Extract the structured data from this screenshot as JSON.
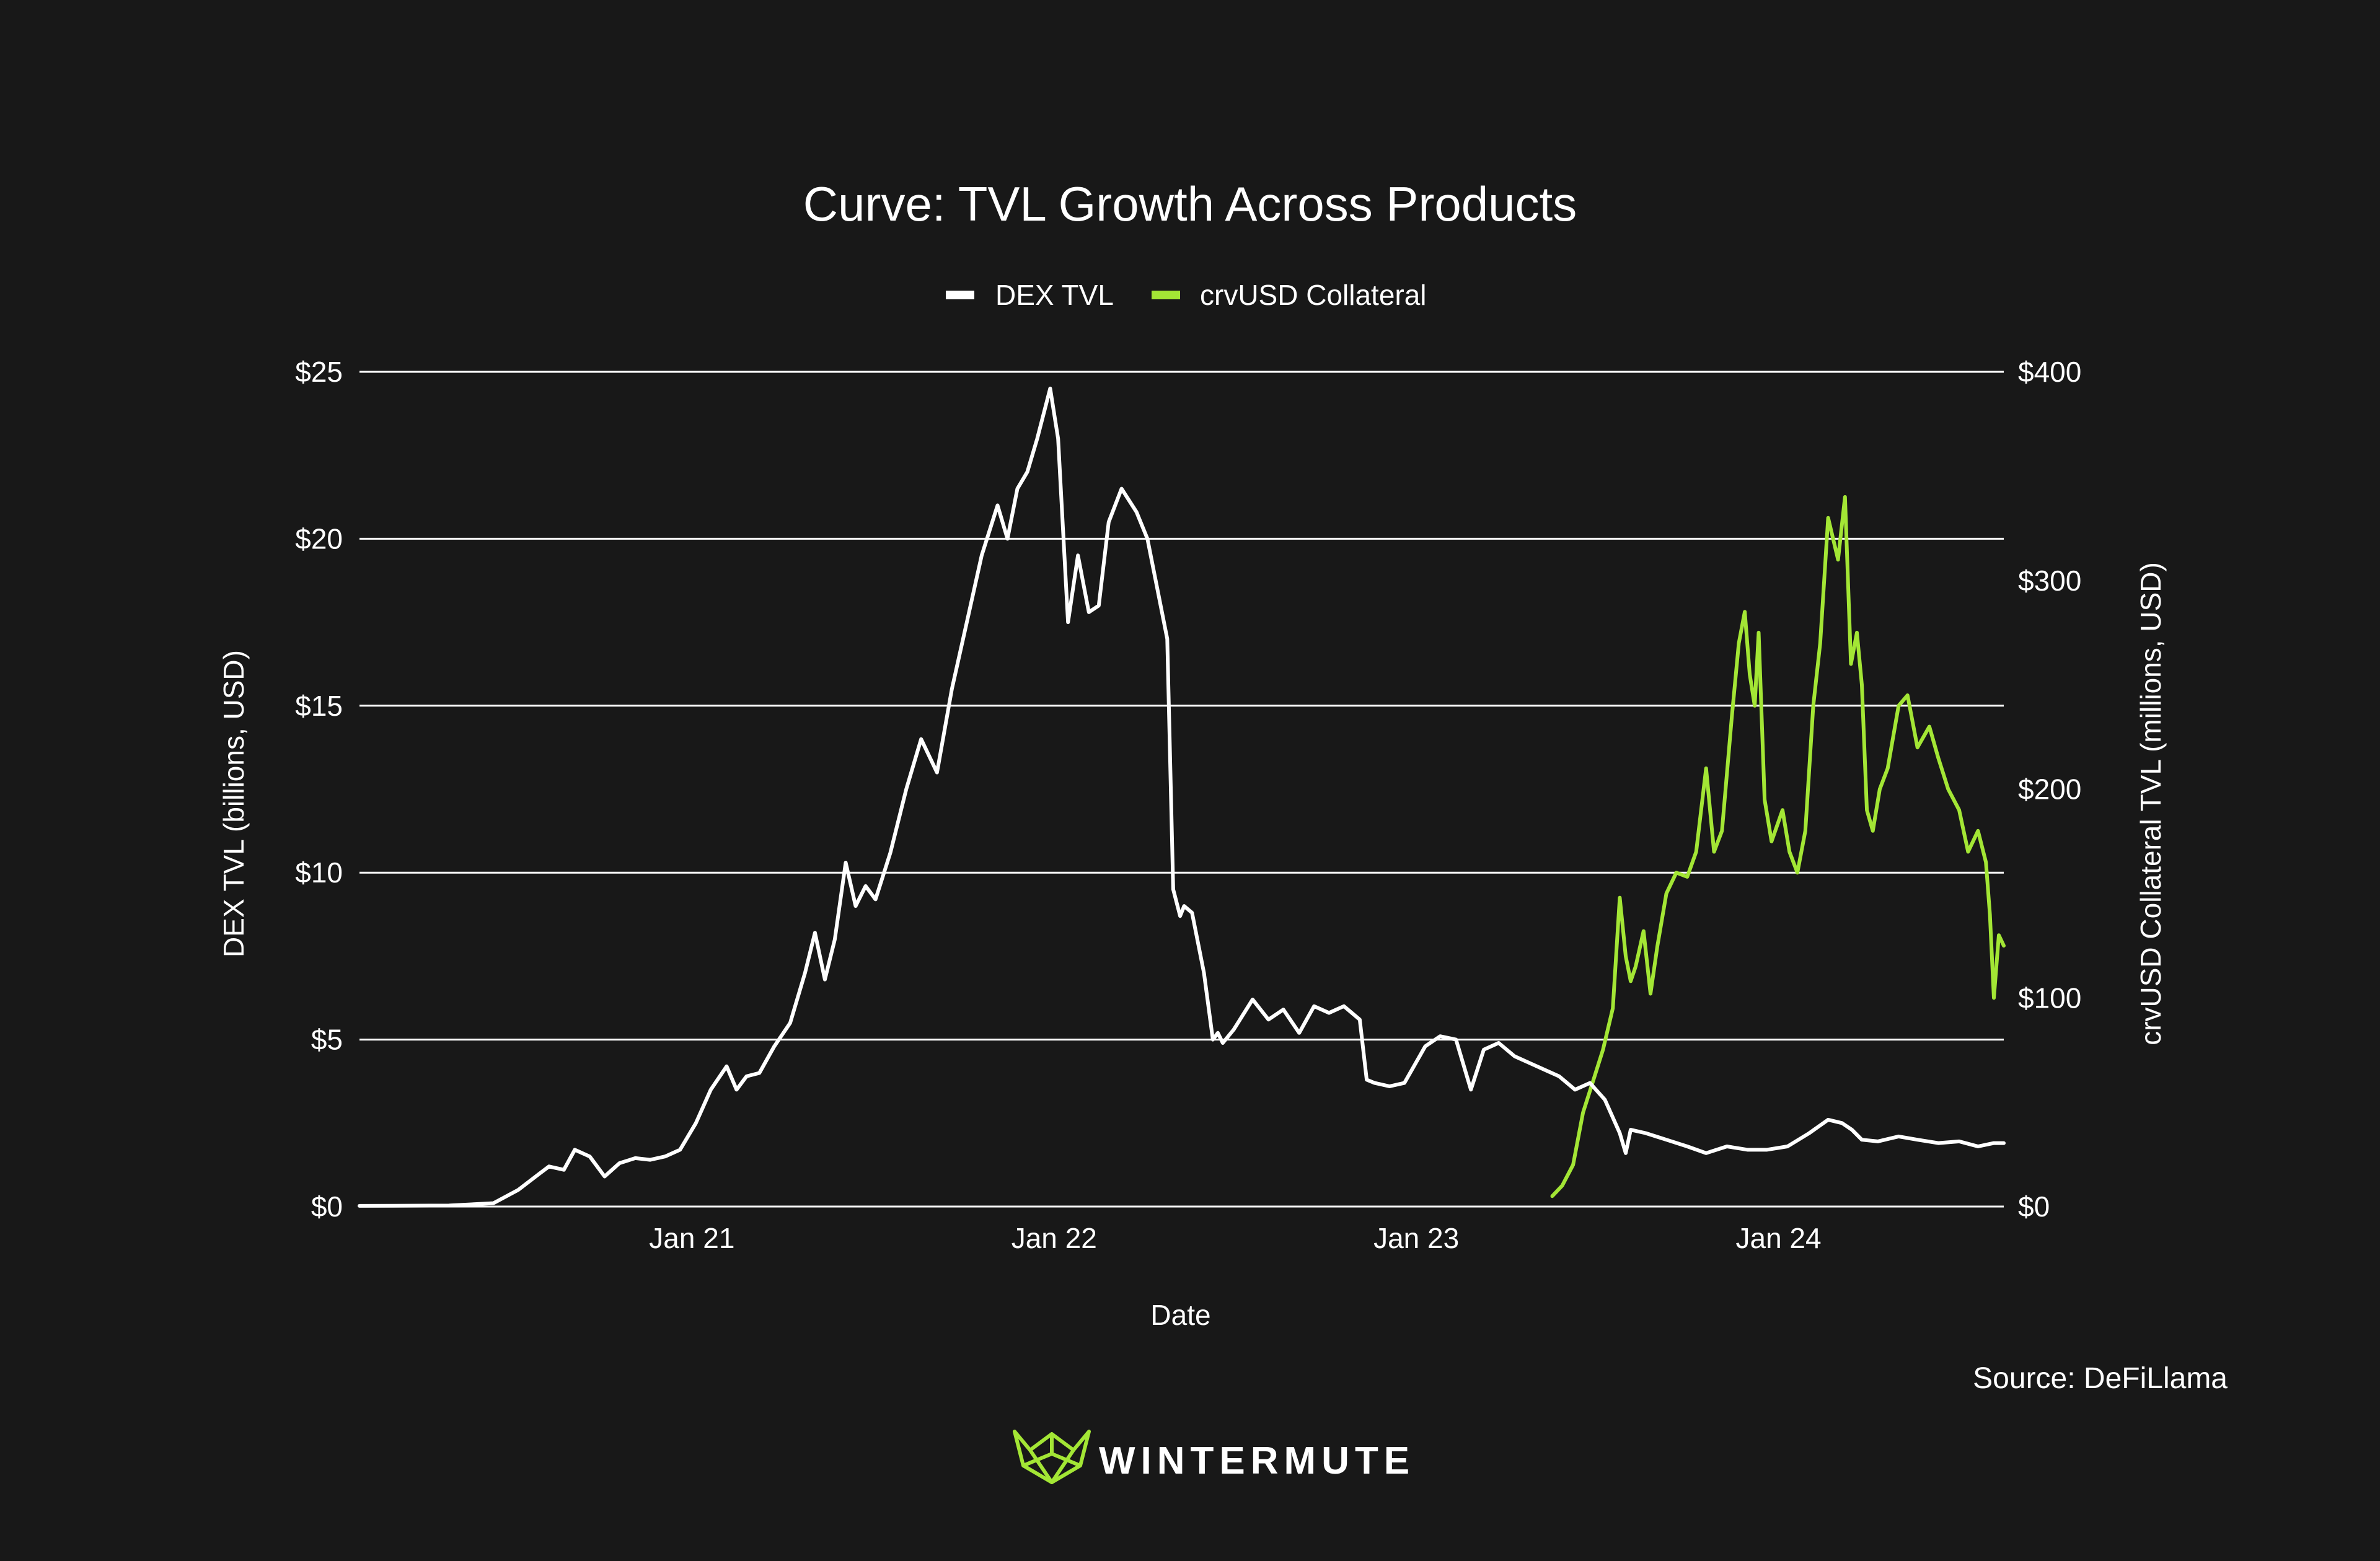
{
  "chart_data": {
    "type": "line",
    "title": "Curve: TVL Growth Across Products",
    "xlabel": "Date",
    "ylabel_left": "DEX TVL (billions, USD)",
    "ylabel_right": "crvUSD Collateral TVL (millions, USD)",
    "x_ticks": [
      "Jan 21",
      "Jan 22",
      "Jan 23",
      "Jan 24"
    ],
    "x_tick_dates": [
      "2021-01-01",
      "2022-01-01",
      "2023-01-01",
      "2024-01-01"
    ],
    "xlim": [
      "2020-02-01",
      "2024-08-15"
    ],
    "y_left_ticks": [
      "$0",
      "$5",
      "$10",
      "$15",
      "$20",
      "$25"
    ],
    "y_left_lim": [
      0,
      25
    ],
    "y_right_ticks": [
      "$0",
      "$100",
      "$200",
      "$300",
      "$400"
    ],
    "y_right_lim": [
      0,
      400
    ],
    "grid": true,
    "legend_position": "top-center",
    "colors": {
      "background": "#181818",
      "dex": "#ffffff",
      "crvusd": "#a3e635"
    },
    "series": [
      {
        "name": "DEX TVL",
        "axis": "left",
        "x": [
          "2020-02-01",
          "2020-05-01",
          "2020-06-15",
          "2020-07-10",
          "2020-08-01",
          "2020-08-10",
          "2020-08-25",
          "2020-09-05",
          "2020-09-20",
          "2020-10-05",
          "2020-10-20",
          "2020-11-05",
          "2020-11-20",
          "2020-12-05",
          "2020-12-20",
          "2021-01-05",
          "2021-01-20",
          "2021-02-05",
          "2021-02-15",
          "2021-02-25",
          "2021-03-10",
          "2021-03-25",
          "2021-04-10",
          "2021-04-25",
          "2021-05-05",
          "2021-05-15",
          "2021-05-25",
          "2021-06-05",
          "2021-06-15",
          "2021-06-25",
          "2021-07-05",
          "2021-07-20",
          "2021-08-05",
          "2021-08-20",
          "2021-09-05",
          "2021-09-20",
          "2021-10-05",
          "2021-10-20",
          "2021-11-05",
          "2021-11-15",
          "2021-11-25",
          "2021-12-05",
          "2021-12-15",
          "2021-12-28",
          "2022-01-05",
          "2022-01-15",
          "2022-01-25",
          "2022-02-05",
          "2022-02-15",
          "2022-02-25",
          "2022-03-10",
          "2022-03-25",
          "2022-04-05",
          "2022-04-15",
          "2022-04-25",
          "2022-05-01",
          "2022-05-08",
          "2022-05-12",
          "2022-05-20",
          "2022-06-01",
          "2022-06-10",
          "2022-06-15",
          "2022-06-20",
          "2022-07-01",
          "2022-07-20",
          "2022-08-05",
          "2022-08-20",
          "2022-09-05",
          "2022-09-20",
          "2022-10-05",
          "2022-10-20",
          "2022-11-05",
          "2022-11-12",
          "2022-11-20",
          "2022-12-05",
          "2022-12-20",
          "2023-01-10",
          "2023-01-25",
          "2023-02-10",
          "2023-02-25",
          "2023-03-10",
          "2023-03-25",
          "2023-04-10",
          "2023-04-25",
          "2023-05-10",
          "2023-05-25",
          "2023-06-10",
          "2023-06-25",
          "2023-07-10",
          "2023-07-25",
          "2023-07-31",
          "2023-08-05",
          "2023-08-20",
          "2023-09-10",
          "2023-10-01",
          "2023-10-20",
          "2023-11-10",
          "2023-12-01",
          "2023-12-20",
          "2024-01-10",
          "2024-02-01",
          "2024-02-20",
          "2024-03-05",
          "2024-03-15",
          "2024-03-25",
          "2024-04-10",
          "2024-05-01",
          "2024-05-20",
          "2024-06-10",
          "2024-07-01",
          "2024-07-20",
          "2024-08-05",
          "2024-08-15"
        ],
        "values": [
          0.02,
          0.03,
          0.1,
          0.5,
          1.0,
          1.2,
          1.1,
          1.7,
          1.5,
          0.9,
          1.3,
          1.45,
          1.4,
          1.5,
          1.7,
          2.5,
          3.5,
          4.2,
          3.5,
          3.9,
          4.0,
          4.8,
          5.5,
          7.0,
          8.2,
          6.8,
          8.0,
          10.3,
          9.0,
          9.6,
          9.2,
          10.6,
          12.5,
          14.0,
          13.0,
          15.5,
          17.5,
          19.5,
          21.0,
          20.0,
          21.5,
          22.0,
          23.0,
          24.5,
          23.0,
          17.5,
          19.5,
          17.8,
          18.0,
          20.5,
          21.5,
          20.8,
          20.0,
          18.5,
          17.0,
          9.5,
          8.7,
          9.0,
          8.8,
          7.0,
          5.0,
          5.2,
          4.9,
          5.3,
          6.2,
          5.6,
          5.9,
          5.2,
          6.0,
          5.8,
          6.0,
          5.6,
          3.8,
          3.7,
          3.6,
          3.7,
          4.8,
          5.1,
          5.0,
          3.5,
          4.7,
          4.9,
          4.5,
          4.3,
          4.1,
          3.9,
          3.5,
          3.7,
          3.2,
          2.2,
          1.6,
          2.3,
          2.2,
          2.0,
          1.8,
          1.6,
          1.8,
          1.7,
          1.7,
          1.8,
          2.2,
          2.6,
          2.5,
          2.3,
          2.0,
          1.95,
          2.1,
          2.0,
          1.9,
          1.95,
          1.8,
          1.9,
          1.9
        ]
      },
      {
        "name": "crvUSD Collateral",
        "axis": "right",
        "x": [
          "2023-05-18",
          "2023-05-28",
          "2023-06-08",
          "2023-06-18",
          "2023-06-28",
          "2023-07-08",
          "2023-07-18",
          "2023-07-25",
          "2023-07-31",
          "2023-08-05",
          "2023-08-10",
          "2023-08-18",
          "2023-08-25",
          "2023-09-01",
          "2023-09-10",
          "2023-09-20",
          "2023-10-01",
          "2023-10-10",
          "2023-10-20",
          "2023-10-28",
          "2023-11-05",
          "2023-11-15",
          "2023-11-22",
          "2023-11-28",
          "2023-12-03",
          "2023-12-08",
          "2023-12-12",
          "2023-12-18",
          "2023-12-25",
          "2024-01-05",
          "2024-01-12",
          "2024-01-20",
          "2024-01-28",
          "2024-02-05",
          "2024-02-12",
          "2024-02-20",
          "2024-03-01",
          "2024-03-08",
          "2024-03-14",
          "2024-03-20",
          "2024-03-25",
          "2024-03-30",
          "2024-04-05",
          "2024-04-12",
          "2024-04-20",
          "2024-05-01",
          "2024-05-10",
          "2024-05-20",
          "2024-06-01",
          "2024-06-10",
          "2024-06-20",
          "2024-07-01",
          "2024-07-10",
          "2024-07-20",
          "2024-07-28",
          "2024-08-01",
          "2024-08-05",
          "2024-08-10",
          "2024-08-15"
        ],
        "values": [
          5,
          10,
          20,
          45,
          60,
          75,
          95,
          148,
          120,
          108,
          115,
          132,
          102,
          125,
          150,
          160,
          158,
          170,
          210,
          170,
          180,
          235,
          270,
          285,
          255,
          240,
          275,
          195,
          175,
          190,
          170,
          160,
          180,
          240,
          270,
          330,
          310,
          340,
          260,
          275,
          250,
          190,
          180,
          200,
          210,
          240,
          245,
          220,
          230,
          215,
          200,
          190,
          170,
          180,
          165,
          140,
          100,
          130,
          125
        ]
      }
    ],
    "annotations": {
      "source": "Source: DeFiLlama"
    }
  },
  "branding": {
    "logo_name": "logo-icon",
    "text": "WINTERMUTE"
  }
}
